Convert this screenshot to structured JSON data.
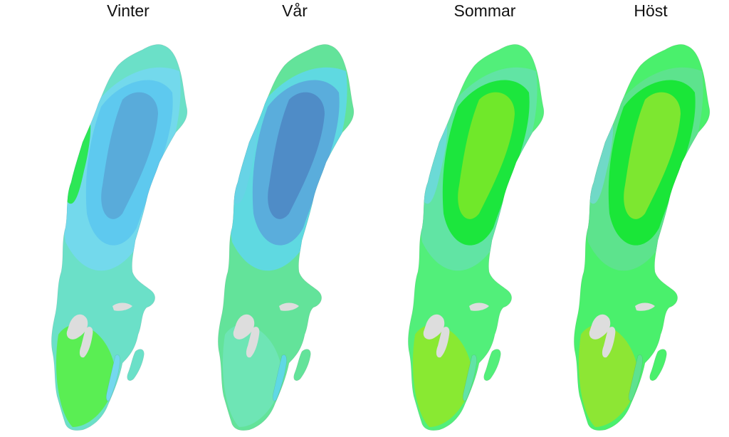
{
  "panels": [
    {
      "title": "Vinter",
      "palette": {
        "base": "#6be0c8",
        "mid": "#74d8ee",
        "core": "#5cc7f0",
        "deep": "#58a6d6",
        "edge": "#26e846",
        "lime": "#59f046"
      }
    },
    {
      "title": "Vår",
      "palette": {
        "base": "#63e39a",
        "mid": "#5fd8e5",
        "core": "#5aa7dc",
        "deep": "#4d86c3",
        "edge": "#68d1e7",
        "lime": "#6fe4b8"
      }
    },
    {
      "title": "Sommar",
      "palette": {
        "base": "#52ef7a",
        "mid": "#62e3a6",
        "core": "#15e632",
        "deep": "#7fe827",
        "edge": "#6dd8dc",
        "lime": "#8fe82a"
      }
    },
    {
      "title": "Höst",
      "palette": {
        "base": "#4af06c",
        "mid": "#5ee28f",
        "core": "#13e52f",
        "deep": "#8fe62f",
        "edge": "#72d7cd",
        "lime": "#95e42f"
      }
    }
  ],
  "lake_color": "#dddddd"
}
